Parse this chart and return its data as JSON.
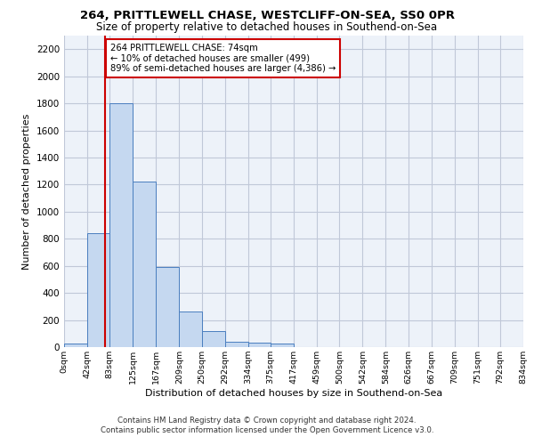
{
  "title1": "264, PRITTLEWELL CHASE, WESTCLIFF-ON-SEA, SS0 0PR",
  "title2": "Size of property relative to detached houses in Southend-on-Sea",
  "xlabel": "Distribution of detached houses by size in Southend-on-Sea",
  "ylabel": "Number of detached properties",
  "footer1": "Contains HM Land Registry data © Crown copyright and database right 2024.",
  "footer2": "Contains public sector information licensed under the Open Government Licence v3.0.",
  "annotation_line1": "264 PRITTLEWELL CHASE: 74sqm",
  "annotation_line2": "← 10% of detached houses are smaller (499)",
  "annotation_line3": "89% of semi-detached houses are larger (4,386) →",
  "property_size": 74,
  "bar_edges": [
    0,
    42,
    83,
    125,
    167,
    209,
    250,
    292,
    334,
    375,
    417,
    459,
    500,
    542,
    584,
    626,
    667,
    709,
    751,
    792,
    834
  ],
  "bar_heights": [
    25,
    840,
    1800,
    1220,
    590,
    260,
    120,
    40,
    35,
    25,
    0,
    0,
    0,
    0,
    0,
    0,
    0,
    0,
    0,
    0
  ],
  "bar_color": "#c5d8f0",
  "bar_edge_color": "#4a7ebf",
  "vline_color": "#cc0000",
  "vline_x": 74,
  "annotation_box_color": "#cc0000",
  "grid_color": "#c0c8d8",
  "background_color": "#edf2f9",
  "ylim": [
    0,
    2300
  ],
  "yticks": [
    0,
    200,
    400,
    600,
    800,
    1000,
    1200,
    1400,
    1600,
    1800,
    2000,
    2200
  ],
  "tick_labels": [
    "0sqm",
    "42sqm",
    "83sqm",
    "125sqm",
    "167sqm",
    "209sqm",
    "250sqm",
    "292sqm",
    "334sqm",
    "375sqm",
    "417sqm",
    "459sqm",
    "500sqm",
    "542sqm",
    "584sqm",
    "626sqm",
    "667sqm",
    "709sqm",
    "751sqm",
    "792sqm",
    "834sqm"
  ]
}
